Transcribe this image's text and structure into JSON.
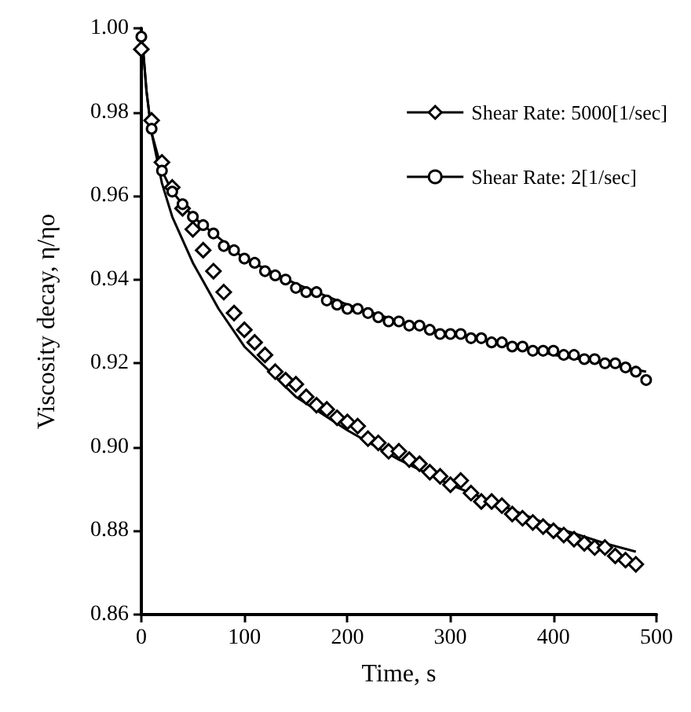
{
  "chart_data": {
    "type": "line",
    "xlabel": "Time, s",
    "ylabel": "Viscosity decay, η/ηo",
    "xlim": [
      0,
      500
    ],
    "xticks": [
      0,
      100,
      200,
      300,
      400,
      500
    ],
    "ylim": [
      0.86,
      1.0
    ],
    "yticks": [
      {
        "value": 0.86,
        "label": "0.86"
      },
      {
        "value": 0.88,
        "label": "0.88"
      },
      {
        "value": 0.9,
        "label": "0.90"
      },
      {
        "value": 0.92,
        "label": "0.92"
      },
      {
        "value": 0.94,
        "label": "0.94"
      },
      {
        "value": 0.96,
        "label": "0.96"
      },
      {
        "value": 0.98,
        "label": "0.98"
      },
      {
        "value": 1.0,
        "label": "1.00"
      }
    ],
    "grid": false,
    "legend": "top right",
    "series": [
      {
        "name": "Shear Rate: 5000[1/sec]",
        "type": "scatter",
        "color": "#000000",
        "marker": "diamond",
        "x": [
          0,
          10,
          20,
          30,
          40,
          50,
          60,
          70,
          80,
          90,
          100,
          110,
          120,
          130,
          140,
          150,
          160,
          170,
          180,
          190,
          200,
          210,
          220,
          230,
          240,
          250,
          260,
          270,
          280,
          290,
          300,
          310,
          320,
          330,
          340,
          350,
          360,
          370,
          380,
          390,
          400,
          410,
          420,
          430,
          440,
          450,
          460,
          470,
          480
        ],
        "values": [
          0.995,
          0.978,
          0.968,
          0.962,
          0.957,
          0.952,
          0.947,
          0.942,
          0.937,
          0.932,
          0.928,
          0.925,
          0.922,
          0.918,
          0.916,
          0.915,
          0.912,
          0.91,
          0.909,
          0.907,
          0.906,
          0.905,
          0.902,
          0.901,
          0.899,
          0.899,
          0.897,
          0.896,
          0.894,
          0.893,
          0.891,
          0.892,
          0.889,
          0.887,
          0.887,
          0.886,
          0.884,
          0.883,
          0.882,
          0.881,
          0.88,
          0.879,
          0.878,
          0.877,
          0.876,
          0.876,
          0.874,
          0.873,
          0.872
        ]
      },
      {
        "name": "Shear Rate: 2[1/sec]",
        "type": "scatter",
        "color": "#000000",
        "marker": "circle",
        "x": [
          0,
          10,
          20,
          30,
          40,
          50,
          60,
          70,
          80,
          90,
          100,
          110,
          120,
          130,
          140,
          150,
          160,
          170,
          180,
          190,
          200,
          210,
          220,
          230,
          240,
          250,
          260,
          270,
          280,
          290,
          300,
          310,
          320,
          330,
          340,
          350,
          360,
          370,
          380,
          390,
          400,
          410,
          420,
          430,
          440,
          450,
          460,
          470,
          480,
          490
        ],
        "values": [
          0.998,
          0.976,
          0.966,
          0.961,
          0.958,
          0.955,
          0.953,
          0.951,
          0.948,
          0.947,
          0.945,
          0.944,
          0.942,
          0.941,
          0.94,
          0.938,
          0.937,
          0.937,
          0.935,
          0.934,
          0.933,
          0.933,
          0.932,
          0.931,
          0.93,
          0.93,
          0.929,
          0.929,
          0.928,
          0.927,
          0.927,
          0.927,
          0.926,
          0.926,
          0.925,
          0.925,
          0.924,
          0.924,
          0.923,
          0.923,
          0.923,
          0.922,
          0.922,
          0.921,
          0.921,
          0.92,
          0.92,
          0.919,
          0.918,
          0.916
        ]
      },
      {
        "color": "#000000",
        "marker": "none",
        "x": [
          0,
          5,
          10,
          20,
          30,
          50,
          75,
          100,
          150,
          200,
          250,
          300,
          350,
          400,
          450,
          480
        ],
        "values": [
          1.0,
          0.985,
          0.975,
          0.963,
          0.955,
          0.944,
          0.933,
          0.924,
          0.912,
          0.904,
          0.897,
          0.891,
          0.886,
          0.881,
          0.877,
          0.875
        ]
      },
      {
        "color": "#000000",
        "marker": "none",
        "x": [
          0,
          5,
          10,
          20,
          30,
          50,
          75,
          100,
          150,
          200,
          250,
          300,
          350,
          400,
          450,
          490
        ],
        "values": [
          1.0,
          0.985,
          0.975,
          0.966,
          0.961,
          0.955,
          0.95,
          0.945,
          0.939,
          0.934,
          0.93,
          0.927,
          0.925,
          0.922,
          0.92,
          0.918
        ]
      }
    ]
  }
}
